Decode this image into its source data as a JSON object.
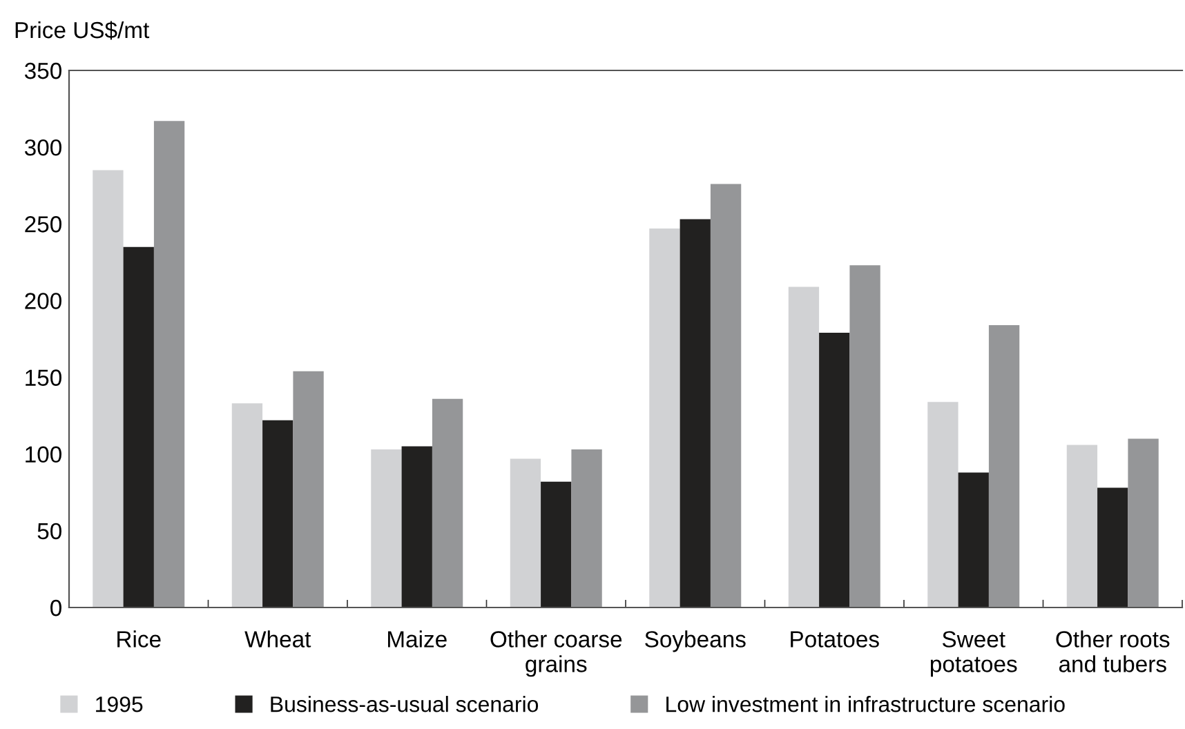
{
  "chart_data": {
    "type": "bar",
    "ylabel": "Price US$/mt",
    "categories": [
      "Rice",
      "Wheat",
      "Maize",
      "Other coarse\ngrains",
      "Soybeans",
      "Potatoes",
      "Sweet\npotatoes",
      "Other roots\nand tubers"
    ],
    "series": [
      {
        "name": "1995",
        "color": "#d1d2d4",
        "values": [
          285,
          133,
          103,
          97,
          247,
          209,
          134,
          106
        ]
      },
      {
        "name": "Business-as-usual scenario",
        "color": "#222120",
        "values": [
          235,
          122,
          105,
          82,
          253,
          179,
          88,
          78
        ]
      },
      {
        "name": "Low investment in infrastructure scenario",
        "color": "#959698",
        "values": [
          317,
          154,
          136,
          103,
          276,
          223,
          184,
          110
        ]
      }
    ],
    "ylim": [
      0,
      350
    ],
    "yticks": [
      0,
      50,
      100,
      150,
      200,
      250,
      300,
      350
    ],
    "grid": false,
    "legend": "bottom"
  }
}
